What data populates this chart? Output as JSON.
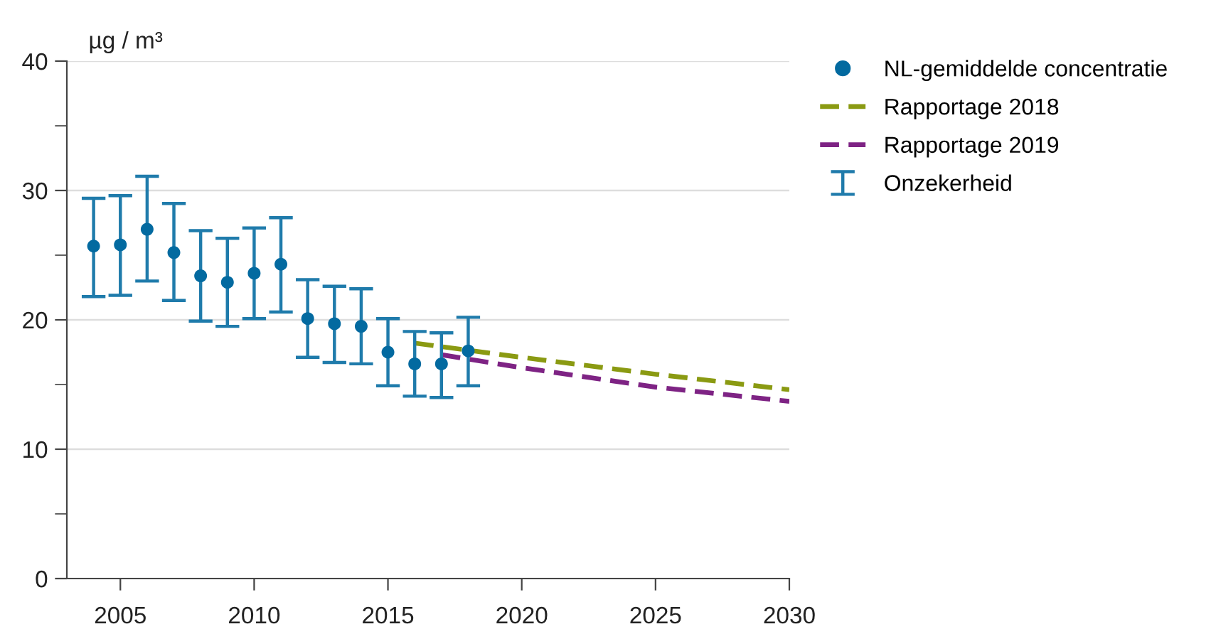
{
  "chart_data": {
    "type": "scatter",
    "ylabel": "µg / m³",
    "x": [
      2004,
      2005,
      2006,
      2007,
      2008,
      2009,
      2010,
      2011,
      2012,
      2013,
      2014,
      2015,
      2016,
      2017,
      2018
    ],
    "series": [
      {
        "name": "NL-gemiddelde concentratie",
        "color": "#036aa0",
        "marker": "circle",
        "values": [
          25.7,
          25.8,
          27.0,
          25.2,
          23.4,
          22.9,
          23.6,
          24.3,
          20.1,
          19.7,
          19.5,
          17.5,
          16.6,
          16.6,
          17.6
        ],
        "errors": [
          [
            21.8,
            29.4
          ],
          [
            21.9,
            29.6
          ],
          [
            23.0,
            31.1
          ],
          [
            21.5,
            29.0
          ],
          [
            19.9,
            26.9
          ],
          [
            19.5,
            26.3
          ],
          [
            20.1,
            27.1
          ],
          [
            20.6,
            27.9
          ],
          [
            17.1,
            23.1
          ],
          [
            16.7,
            22.6
          ],
          [
            16.6,
            22.4
          ],
          [
            14.9,
            20.1
          ],
          [
            14.1,
            19.1
          ],
          [
            14.0,
            19.0
          ],
          [
            14.9,
            20.2
          ]
        ]
      },
      {
        "name": "Rapportage 2018",
        "type": "line",
        "color": "#8a9a12",
        "line_style": "dashed",
        "marker": "none",
        "x": [
          2016,
          2020,
          2025,
          2030
        ],
        "values": [
          18.2,
          17.1,
          15.8,
          14.6
        ]
      },
      {
        "name": "Rapportage 2019",
        "type": "line",
        "color": "#7e2384",
        "line_style": "dashed",
        "marker": "none",
        "x": [
          2017,
          2020,
          2025,
          2030
        ],
        "values": [
          17.3,
          16.3,
          14.8,
          13.7
        ]
      }
    ],
    "annotations": [
      "Onzekerheid"
    ],
    "xlim": [
      2003,
      2030
    ],
    "xticks": [
      2005,
      2010,
      2015,
      2020,
      2025,
      2030
    ],
    "ylim": [
      0,
      40
    ],
    "yticks": [
      0,
      {
        "value": 5,
        "label": null
      },
      10,
      {
        "value": 15,
        "label": null
      },
      20,
      {
        "value": 25,
        "label": null
      },
      30,
      {
        "value": 35,
        "label": null
      },
      40
    ],
    "grid": "y",
    "legend": "top right"
  }
}
